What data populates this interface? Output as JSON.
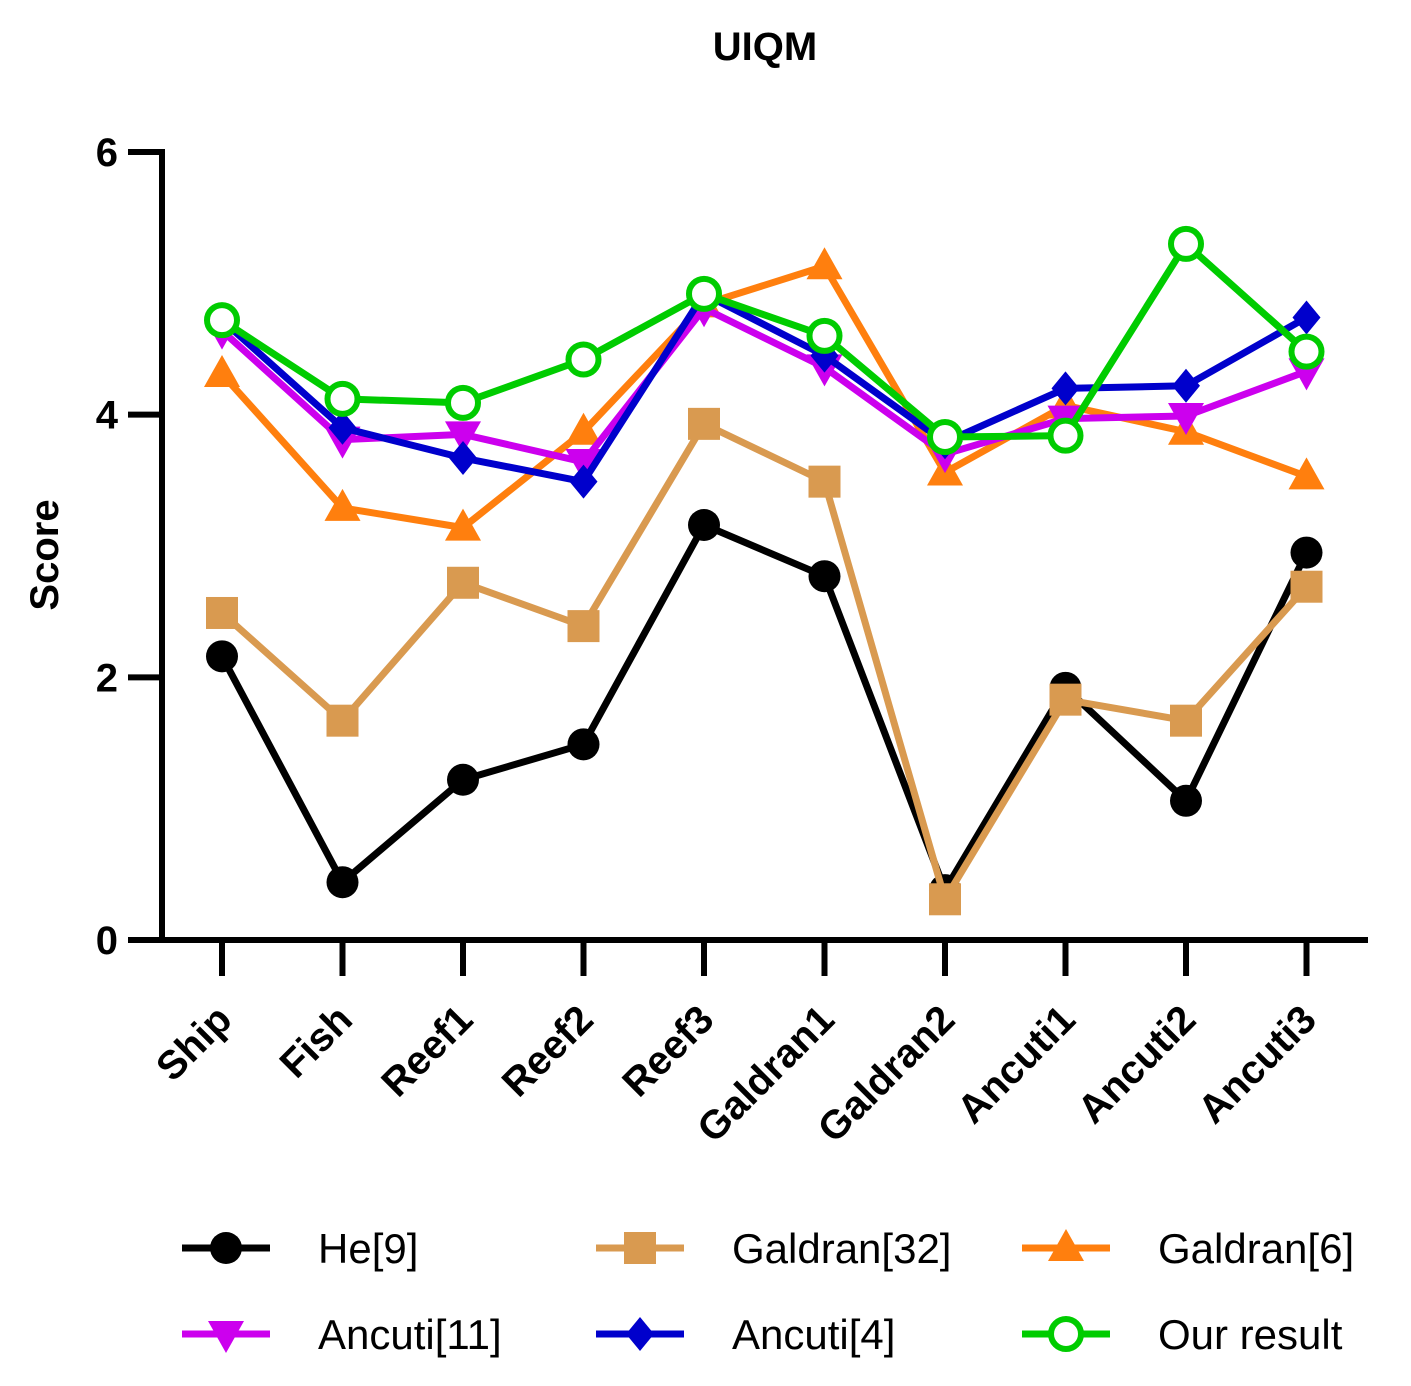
{
  "chart_data": {
    "type": "line",
    "title": "UIQM",
    "xlabel": "",
    "ylabel": "Score",
    "ylim": [
      0,
      6
    ],
    "yticks": [
      0,
      2,
      4,
      6
    ],
    "categories": [
      "Ship",
      "Fish",
      "Reef1",
      "Reef2",
      "Reef3",
      "Galdran1",
      "Galdran2",
      "Ancuti1",
      "Ancuti2",
      "Ancuti3"
    ],
    "series": [
      {
        "name": "He[9]",
        "color": "#000000",
        "marker": "circle-filled",
        "values": [
          2.16,
          0.44,
          1.22,
          1.49,
          3.16,
          2.77,
          0.38,
          1.92,
          1.06,
          2.95
        ]
      },
      {
        "name": "Galdran[32]",
        "color": "#D99A50",
        "marker": "square",
        "values": [
          2.49,
          1.67,
          2.72,
          2.39,
          3.93,
          3.49,
          0.31,
          1.83,
          1.67,
          2.69
        ]
      },
      {
        "name": "Galdran[6]",
        "color": "#FF7F0E",
        "marker": "triangle-up",
        "values": [
          4.31,
          3.29,
          3.14,
          3.87,
          4.84,
          5.13,
          3.56,
          4.07,
          3.87,
          3.53
        ]
      },
      {
        "name": "Ancuti[11]",
        "color": "#CC00EE",
        "marker": "triangle-down",
        "values": [
          4.64,
          3.81,
          3.85,
          3.64,
          4.81,
          4.36,
          3.7,
          3.97,
          3.99,
          4.33
        ]
      },
      {
        "name": "Ancuti[4]",
        "color": "#0000CC",
        "marker": "diamond",
        "values": [
          4.72,
          3.9,
          3.67,
          3.49,
          4.92,
          4.45,
          3.79,
          4.2,
          4.22,
          4.74
        ]
      },
      {
        "name": "Our result",
        "color": "#00CC00",
        "marker": "circle-open",
        "values": [
          4.72,
          4.12,
          4.09,
          4.42,
          4.92,
          4.6,
          3.83,
          3.84,
          5.3,
          4.48
        ]
      }
    ],
    "legend_position": "bottom"
  }
}
